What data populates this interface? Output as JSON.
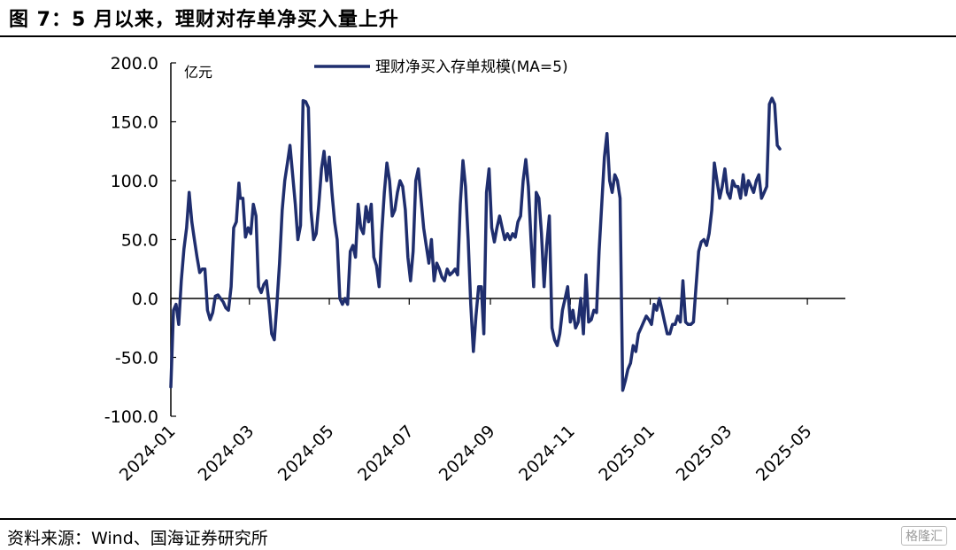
{
  "figure_title": "图 7：5 月以来，理财对存单净买入量上升",
  "source": "资料来源：Wind、国海证券研究所",
  "watermark": "格隆汇",
  "colors": {
    "line": "#1f2e6e",
    "axis": "#000000"
  },
  "chart_data": {
    "type": "line",
    "title": "",
    "ylabel": "亿元",
    "xlabel": "",
    "ylim": [
      -100,
      200
    ],
    "yticks": [
      "200.0",
      "150.0",
      "100.0",
      "50.0",
      "0.0",
      "-50.0",
      "-100.0"
    ],
    "xticks": [
      "2024-01",
      "2024-03",
      "2024-05",
      "2024-07",
      "2024-09",
      "2024-11",
      "2025-01",
      "2025-03",
      "2025-05"
    ],
    "xrange": [
      "2024-01-01",
      "2025-05-30"
    ],
    "grid": false,
    "legend": "top-center",
    "series": [
      {
        "name": "理财净买入存单规模(MA=5)",
        "points": [
          [
            "2024-01-01",
            -75
          ],
          [
            "2024-01-03",
            -10
          ],
          [
            "2024-01-05",
            -5
          ],
          [
            "2024-01-07",
            -22
          ],
          [
            "2024-01-09",
            15
          ],
          [
            "2024-01-11",
            42
          ],
          [
            "2024-01-13",
            60
          ],
          [
            "2024-01-15",
            90
          ],
          [
            "2024-01-17",
            65
          ],
          [
            "2024-01-19",
            50
          ],
          [
            "2024-01-21",
            35
          ],
          [
            "2024-01-23",
            22
          ],
          [
            "2024-01-25",
            25
          ],
          [
            "2024-01-27",
            25
          ],
          [
            "2024-01-29",
            -10
          ],
          [
            "2024-01-31",
            -18
          ],
          [
            "2024-02-02",
            -12
          ],
          [
            "2024-02-04",
            2
          ],
          [
            "2024-02-06",
            3
          ],
          [
            "2024-02-08",
            0
          ],
          [
            "2024-02-10",
            -3
          ],
          [
            "2024-02-12",
            -8
          ],
          [
            "2024-02-14",
            -10
          ],
          [
            "2024-02-16",
            10
          ],
          [
            "2024-02-18",
            60
          ],
          [
            "2024-02-20",
            65
          ],
          [
            "2024-02-22",
            98
          ],
          [
            "2024-02-23",
            85
          ],
          [
            "2024-02-25",
            85
          ],
          [
            "2024-02-27",
            52
          ],
          [
            "2024-02-29",
            60
          ],
          [
            "2024-03-02",
            55
          ],
          [
            "2024-03-04",
            80
          ],
          [
            "2024-03-06",
            70
          ],
          [
            "2024-03-08",
            10
          ],
          [
            "2024-03-10",
            5
          ],
          [
            "2024-03-12",
            12
          ],
          [
            "2024-03-14",
            15
          ],
          [
            "2024-03-16",
            -5
          ],
          [
            "2024-03-18",
            -30
          ],
          [
            "2024-03-20",
            -35
          ],
          [
            "2024-03-22",
            -5
          ],
          [
            "2024-03-24",
            30
          ],
          [
            "2024-03-26",
            75
          ],
          [
            "2024-03-28",
            100
          ],
          [
            "2024-03-30",
            115
          ],
          [
            "2024-04-01",
            130
          ],
          [
            "2024-04-03",
            105
          ],
          [
            "2024-04-05",
            80
          ],
          [
            "2024-04-07",
            50
          ],
          [
            "2024-04-09",
            62
          ],
          [
            "2024-04-11",
            168
          ],
          [
            "2024-04-13",
            167
          ],
          [
            "2024-04-15",
            162
          ],
          [
            "2024-04-17",
            75
          ],
          [
            "2024-04-19",
            50
          ],
          [
            "2024-04-21",
            55
          ],
          [
            "2024-04-23",
            80
          ],
          [
            "2024-04-25",
            110
          ],
          [
            "2024-04-27",
            125
          ],
          [
            "2024-04-29",
            100
          ],
          [
            "2024-05-01",
            120
          ],
          [
            "2024-05-03",
            90
          ],
          [
            "2024-05-05",
            65
          ],
          [
            "2024-05-07",
            50
          ],
          [
            "2024-05-09",
            0
          ],
          [
            "2024-05-11",
            -5
          ],
          [
            "2024-05-13",
            0
          ],
          [
            "2024-05-15",
            -5
          ],
          [
            "2024-05-17",
            40
          ],
          [
            "2024-05-19",
            45
          ],
          [
            "2024-05-21",
            35
          ],
          [
            "2024-05-23",
            80
          ],
          [
            "2024-05-25",
            60
          ],
          [
            "2024-05-27",
            55
          ],
          [
            "2024-05-29",
            78
          ],
          [
            "2024-05-31",
            65
          ],
          [
            "2024-06-02",
            80
          ],
          [
            "2024-06-04",
            35
          ],
          [
            "2024-06-06",
            28
          ],
          [
            "2024-06-08",
            10
          ],
          [
            "2024-06-10",
            55
          ],
          [
            "2024-06-12",
            90
          ],
          [
            "2024-06-14",
            115
          ],
          [
            "2024-06-16",
            100
          ],
          [
            "2024-06-18",
            70
          ],
          [
            "2024-06-20",
            75
          ],
          [
            "2024-06-22",
            90
          ],
          [
            "2024-06-24",
            100
          ],
          [
            "2024-06-26",
            95
          ],
          [
            "2024-06-28",
            75
          ],
          [
            "2024-06-30",
            35
          ],
          [
            "2024-07-02",
            15
          ],
          [
            "2024-07-04",
            40
          ],
          [
            "2024-07-06",
            100
          ],
          [
            "2024-07-08",
            110
          ],
          [
            "2024-07-10",
            85
          ],
          [
            "2024-07-12",
            60
          ],
          [
            "2024-07-14",
            45
          ],
          [
            "2024-07-16",
            30
          ],
          [
            "2024-07-18",
            50
          ],
          [
            "2024-07-20",
            15
          ],
          [
            "2024-07-22",
            30
          ],
          [
            "2024-07-24",
            25
          ],
          [
            "2024-07-26",
            18
          ],
          [
            "2024-07-28",
            15
          ],
          [
            "2024-07-30",
            25
          ],
          [
            "2024-08-01",
            20
          ],
          [
            "2024-08-03",
            22
          ],
          [
            "2024-08-05",
            25
          ],
          [
            "2024-08-07",
            20
          ],
          [
            "2024-08-09",
            80
          ],
          [
            "2024-08-11",
            117
          ],
          [
            "2024-08-13",
            95
          ],
          [
            "2024-08-15",
            50
          ],
          [
            "2024-08-17",
            -5
          ],
          [
            "2024-08-19",
            -45
          ],
          [
            "2024-08-21",
            -15
          ],
          [
            "2024-08-23",
            10
          ],
          [
            "2024-08-25",
            10
          ],
          [
            "2024-08-27",
            -30
          ],
          [
            "2024-08-29",
            90
          ],
          [
            "2024-08-31",
            110
          ],
          [
            "2024-09-02",
            60
          ],
          [
            "2024-09-04",
            48
          ],
          [
            "2024-09-06",
            60
          ],
          [
            "2024-09-08",
            70
          ],
          [
            "2024-09-10",
            60
          ],
          [
            "2024-09-12",
            50
          ],
          [
            "2024-09-14",
            55
          ],
          [
            "2024-09-16",
            50
          ],
          [
            "2024-09-18",
            55
          ],
          [
            "2024-09-20",
            52
          ],
          [
            "2024-09-22",
            65
          ],
          [
            "2024-09-24",
            70
          ],
          [
            "2024-09-26",
            100
          ],
          [
            "2024-09-28",
            118
          ],
          [
            "2024-09-30",
            95
          ],
          [
            "2024-10-02",
            50
          ],
          [
            "2024-10-04",
            10
          ],
          [
            "2024-10-06",
            90
          ],
          [
            "2024-10-08",
            85
          ],
          [
            "2024-10-10",
            55
          ],
          [
            "2024-10-12",
            10
          ],
          [
            "2024-10-14",
            45
          ],
          [
            "2024-10-16",
            70
          ],
          [
            "2024-10-18",
            -25
          ],
          [
            "2024-10-20",
            -35
          ],
          [
            "2024-10-22",
            -40
          ],
          [
            "2024-10-24",
            -30
          ],
          [
            "2024-10-26",
            -10
          ],
          [
            "2024-10-28",
            0
          ],
          [
            "2024-10-30",
            10
          ],
          [
            "2024-11-01",
            -20
          ],
          [
            "2024-11-03",
            -10
          ],
          [
            "2024-11-05",
            -25
          ],
          [
            "2024-11-07",
            -20
          ],
          [
            "2024-11-09",
            0
          ],
          [
            "2024-11-11",
            -30
          ],
          [
            "2024-11-13",
            20
          ],
          [
            "2024-11-15",
            -20
          ],
          [
            "2024-11-17",
            -18
          ],
          [
            "2024-11-19",
            -10
          ],
          [
            "2024-11-21",
            -12
          ],
          [
            "2024-11-23",
            40
          ],
          [
            "2024-11-25",
            80
          ],
          [
            "2024-11-27",
            120
          ],
          [
            "2024-11-29",
            140
          ],
          [
            "2024-12-01",
            100
          ],
          [
            "2024-12-03",
            90
          ],
          [
            "2024-12-05",
            105
          ],
          [
            "2024-12-07",
            100
          ],
          [
            "2024-12-09",
            85
          ],
          [
            "2024-12-11",
            -78
          ],
          [
            "2024-12-13",
            -70
          ],
          [
            "2024-12-15",
            -60
          ],
          [
            "2024-12-17",
            -55
          ],
          [
            "2024-12-19",
            -40
          ],
          [
            "2024-12-21",
            -45
          ],
          [
            "2024-12-23",
            -30
          ],
          [
            "2024-12-25",
            -25
          ],
          [
            "2024-12-27",
            -20
          ],
          [
            "2024-12-29",
            -15
          ],
          [
            "2024-12-31",
            -18
          ],
          [
            "2025-01-02",
            -22
          ],
          [
            "2025-01-04",
            -5
          ],
          [
            "2025-01-06",
            -10
          ],
          [
            "2025-01-08",
            0
          ],
          [
            "2025-01-10",
            -10
          ],
          [
            "2025-01-12",
            -20
          ],
          [
            "2025-01-14",
            -30
          ],
          [
            "2025-01-16",
            -30
          ],
          [
            "2025-01-18",
            -22
          ],
          [
            "2025-01-20",
            -22
          ],
          [
            "2025-01-22",
            -15
          ],
          [
            "2025-01-24",
            -20
          ],
          [
            "2025-01-26",
            15
          ],
          [
            "2025-01-28",
            -20
          ],
          [
            "2025-01-30",
            -22
          ],
          [
            "2025-02-01",
            -22
          ],
          [
            "2025-02-03",
            -20
          ],
          [
            "2025-02-05",
            10
          ],
          [
            "2025-02-07",
            40
          ],
          [
            "2025-02-09",
            48
          ],
          [
            "2025-02-11",
            50
          ],
          [
            "2025-02-13",
            45
          ],
          [
            "2025-02-15",
            55
          ],
          [
            "2025-02-17",
            75
          ],
          [
            "2025-02-19",
            115
          ],
          [
            "2025-02-21",
            100
          ],
          [
            "2025-02-23",
            85
          ],
          [
            "2025-02-25",
            95
          ],
          [
            "2025-02-27",
            110
          ],
          [
            "2025-03-01",
            90
          ],
          [
            "2025-03-03",
            85
          ],
          [
            "2025-03-05",
            100
          ],
          [
            "2025-03-07",
            95
          ],
          [
            "2025-03-09",
            95
          ],
          [
            "2025-03-11",
            85
          ],
          [
            "2025-03-13",
            105
          ],
          [
            "2025-03-15",
            88
          ],
          [
            "2025-03-17",
            100
          ],
          [
            "2025-03-19",
            95
          ],
          [
            "2025-03-21",
            90
          ],
          [
            "2025-03-23",
            100
          ],
          [
            "2025-03-25",
            105
          ],
          [
            "2025-03-27",
            85
          ],
          [
            "2025-03-29",
            90
          ],
          [
            "2025-03-31",
            95
          ],
          [
            "2025-04-02",
            165
          ],
          [
            "2025-04-04",
            170
          ],
          [
            "2025-04-06",
            165
          ],
          [
            "2025-04-08",
            130
          ],
          [
            "2025-04-10",
            127
          ]
        ]
      }
    ]
  }
}
